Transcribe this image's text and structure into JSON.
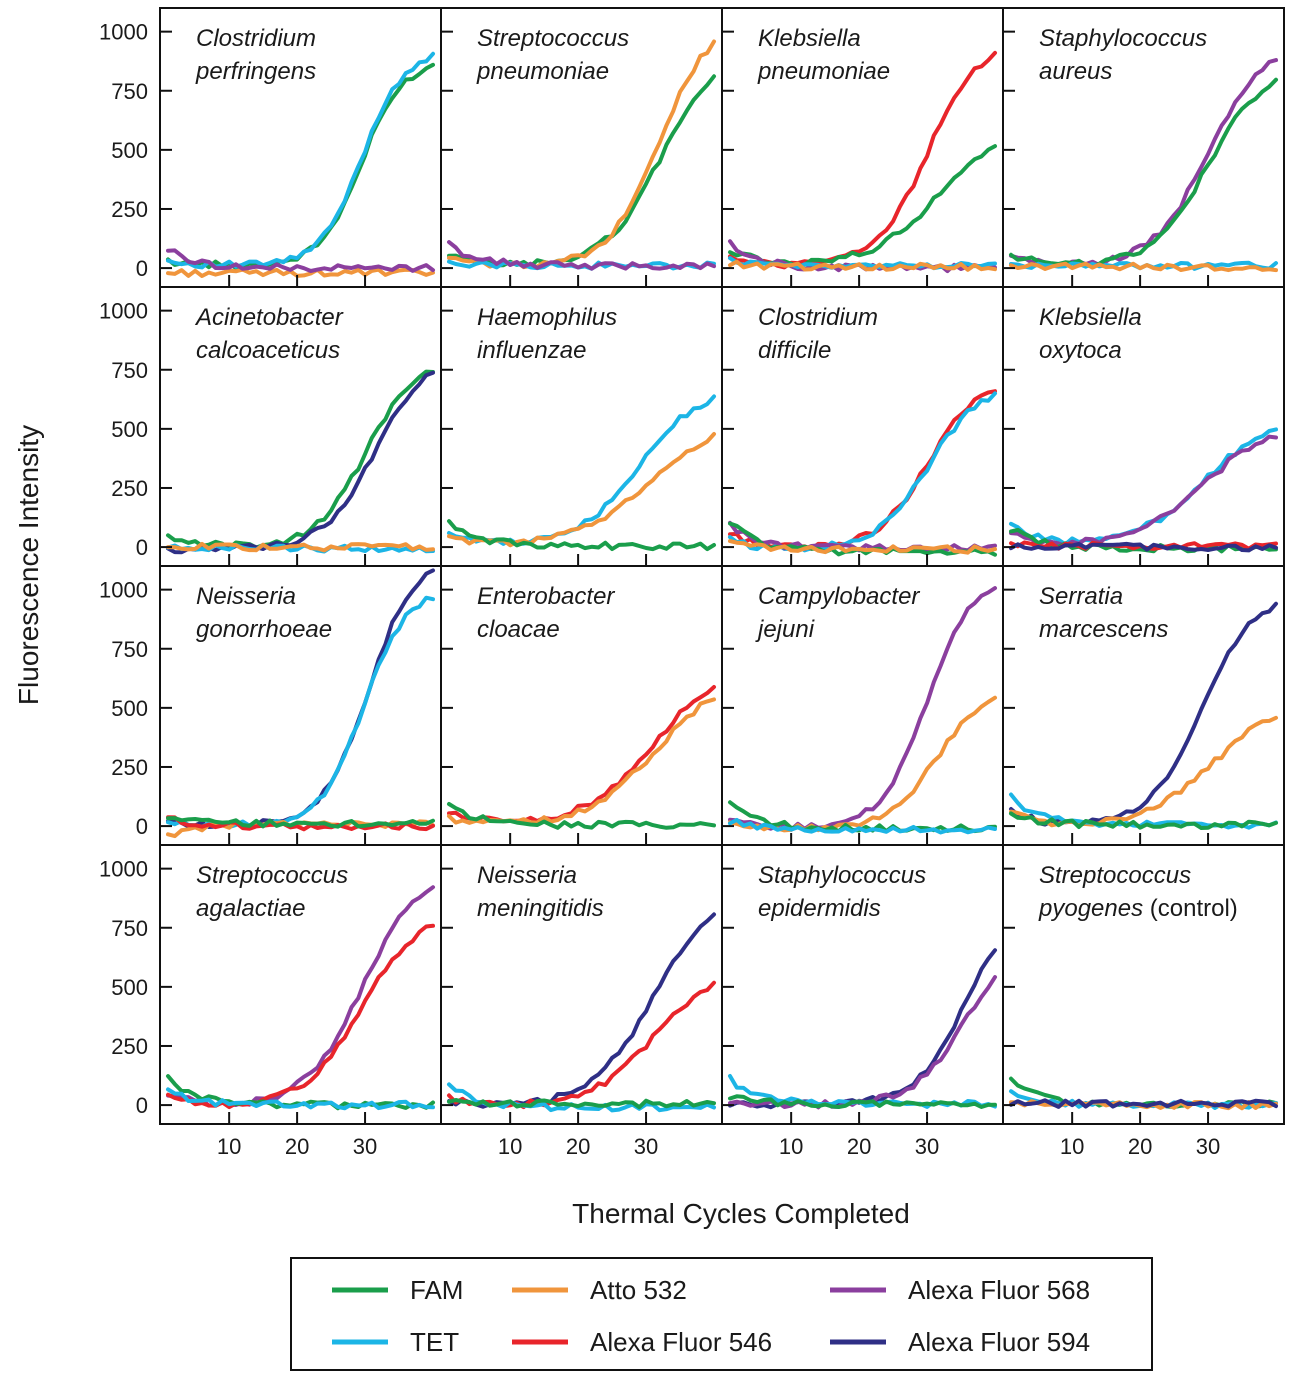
{
  "chart_data": {
    "type": "line",
    "xlabel": "Thermal Cycles Completed",
    "ylabel": "Fluorescence Intensity",
    "xlim": [
      1,
      40
    ],
    "ylim": [
      -80,
      1100
    ],
    "xticks": [
      10,
      20,
      30
    ],
    "yticks": [
      0,
      250,
      500,
      750,
      1000
    ],
    "legend_position": "bottom-center",
    "legend": [
      {
        "key": "FAM",
        "label": "FAM",
        "color": "#1a9e4b"
      },
      {
        "key": "Atto532",
        "label": "Atto 532",
        "color": "#f0953c"
      },
      {
        "key": "AF568",
        "label": "Alexa Fluor 568",
        "color": "#8b3f9e"
      },
      {
        "key": "TET",
        "label": "TET",
        "color": "#1cb5e6"
      },
      {
        "key": "AF546",
        "label": "Alexa Fluor 546",
        "color": "#e8252b"
      },
      {
        "key": "AF594",
        "label": "Alexa Fluor 594",
        "color": "#2f2f86"
      }
    ],
    "panels": [
      {
        "title_parts": [
          {
            "text": "Clostridium",
            "italic": true
          }
        ],
        "title_line2": [
          {
            "text": "perfringens",
            "italic": true
          }
        ],
        "series": [
          {
            "dye": "FAM",
            "shape": "sigmoid",
            "max": 870,
            "mid": 29.5,
            "k": 0.33,
            "base": 10,
            "start": 30
          },
          {
            "dye": "TET",
            "shape": "sigmoid",
            "max": 910,
            "mid": 29.5,
            "k": 0.33,
            "base": 10,
            "start": 30
          },
          {
            "dye": "Atto532",
            "shape": "flat",
            "base": -20,
            "start": -20
          },
          {
            "dye": "AF568",
            "shape": "flat",
            "base": 0,
            "start": 80
          }
        ]
      },
      {
        "title_parts": [
          {
            "text": "Streptococcus",
            "italic": true
          }
        ],
        "title_line2": [
          {
            "text": "pneumoniae",
            "italic": true
          }
        ],
        "series": [
          {
            "dye": "FAM",
            "shape": "sigmoid",
            "max": 900,
            "mid": 32,
            "k": 0.25,
            "base": 10,
            "start": 50
          },
          {
            "dye": "Atto532",
            "shape": "sigmoid",
            "max": 1050,
            "mid": 32,
            "k": 0.27,
            "base": 10,
            "start": 40
          },
          {
            "dye": "TET",
            "shape": "flat",
            "base": 10,
            "start": 30
          },
          {
            "dye": "AF568",
            "shape": "flat",
            "base": 10,
            "start": 100
          }
        ]
      },
      {
        "title_parts": [
          {
            "text": "Klebsiella",
            "italic": true
          }
        ],
        "title_line2": [
          {
            "text": "pneumoniae",
            "italic": true
          }
        ],
        "series": [
          {
            "dye": "AF546",
            "shape": "sigmoid",
            "max": 950,
            "mid": 30,
            "k": 0.27,
            "base": 10,
            "start": 40
          },
          {
            "dye": "FAM",
            "shape": "sigmoid",
            "max": 620,
            "mid": 32,
            "k": 0.2,
            "base": 10,
            "start": 80
          },
          {
            "dye": "AF568",
            "shape": "flat",
            "base": 0,
            "start": 110
          },
          {
            "dye": "TET",
            "shape": "flat",
            "base": 10,
            "start": 30
          },
          {
            "dye": "Atto532",
            "shape": "flat",
            "base": 5,
            "start": 20
          }
        ]
      },
      {
        "title_parts": [
          {
            "text": "Staphylococcus",
            "italic": true
          }
        ],
        "title_line2": [
          {
            "text": "aureus",
            "italic": true
          }
        ],
        "series": [
          {
            "dye": "AF568",
            "shape": "sigmoid",
            "max": 960,
            "mid": 30,
            "k": 0.24,
            "base": 5,
            "start": 50
          },
          {
            "dye": "FAM",
            "shape": "sigmoid",
            "max": 860,
            "mid": 30,
            "k": 0.24,
            "base": 5,
            "start": 60
          },
          {
            "dye": "TET",
            "shape": "flat",
            "base": 10,
            "start": 20
          },
          {
            "dye": "Atto532",
            "shape": "flat",
            "base": 5,
            "start": 10
          }
        ]
      },
      {
        "title_parts": [
          {
            "text": "Acinetobacter",
            "italic": true
          }
        ],
        "title_line2": [
          {
            "text": "calcoaceticus",
            "italic": true
          }
        ],
        "series": [
          {
            "dye": "FAM",
            "shape": "sigmoid",
            "max": 790,
            "mid": 30,
            "k": 0.28,
            "base": 0,
            "start": 40
          },
          {
            "dye": "AF594",
            "shape": "sigmoid",
            "max": 830,
            "mid": 31.5,
            "k": 0.26,
            "base": -10,
            "start": -10
          },
          {
            "dye": "TET",
            "shape": "flat",
            "base": -5,
            "start": 10
          },
          {
            "dye": "Atto532",
            "shape": "flat",
            "base": 0,
            "start": 0
          }
        ]
      },
      {
        "title_parts": [
          {
            "text": "Haemophilus",
            "italic": true
          }
        ],
        "title_line2": [
          {
            "text": "influenzae",
            "italic": true
          }
        ],
        "series": [
          {
            "dye": "TET",
            "shape": "sigmoid",
            "max": 680,
            "mid": 29,
            "k": 0.22,
            "base": 5,
            "start": 60
          },
          {
            "dye": "Atto532",
            "shape": "sigmoid",
            "max": 560,
            "mid": 31,
            "k": 0.18,
            "base": 5,
            "start": 50
          },
          {
            "dye": "FAM",
            "shape": "flat",
            "base": 5,
            "start": 110
          }
        ]
      },
      {
        "title_parts": [
          {
            "text": "Clostridium",
            "italic": true
          }
        ],
        "title_line2": [
          {
            "text": "difficile",
            "italic": true
          }
        ],
        "series": [
          {
            "dye": "AF546",
            "shape": "sigmoid",
            "max": 720,
            "mid": 30,
            "k": 0.27,
            "base": -10,
            "start": 60
          },
          {
            "dye": "TET",
            "shape": "sigmoid",
            "max": 690,
            "mid": 30,
            "k": 0.27,
            "base": -10,
            "start": 30
          },
          {
            "dye": "AF568",
            "shape": "flat",
            "base": -5,
            "start": 90
          },
          {
            "dye": "FAM",
            "shape": "flat",
            "base": -20,
            "start": 110
          },
          {
            "dye": "Atto532",
            "shape": "flat",
            "base": -10,
            "start": 20
          }
        ]
      },
      {
        "title_parts": [
          {
            "text": "Klebsiella",
            "italic": true
          }
        ],
        "title_line2": [
          {
            "text": "oxytoca",
            "italic": true
          }
        ],
        "series": [
          {
            "dye": "TET",
            "shape": "sigmoid",
            "max": 560,
            "mid": 29.5,
            "k": 0.2,
            "base": 5,
            "start": 100
          },
          {
            "dye": "AF568",
            "shape": "sigmoid",
            "max": 530,
            "mid": 29.5,
            "k": 0.2,
            "base": 5,
            "start": 60
          },
          {
            "dye": "FAM",
            "shape": "flat",
            "base": -5,
            "start": 80
          },
          {
            "dye": "AF546",
            "shape": "flat",
            "base": 5,
            "start": 10
          },
          {
            "dye": "AF594",
            "shape": "flat",
            "base": 0,
            "start": 0
          }
        ]
      },
      {
        "title_parts": [
          {
            "text": "Neisseria",
            "italic": true
          }
        ],
        "title_line2": [
          {
            "text": "gonorrhoeae",
            "italic": true
          }
        ],
        "series": [
          {
            "dye": "AF594",
            "shape": "sigmoid",
            "max": 1140,
            "mid": 30.5,
            "k": 0.3,
            "base": 5,
            "start": 20
          },
          {
            "dye": "TET",
            "shape": "sigmoid",
            "max": 1000,
            "mid": 29.8,
            "k": 0.32,
            "base": 5,
            "start": 20
          },
          {
            "dye": "Atto532",
            "shape": "flat",
            "base": 10,
            "start": -40
          },
          {
            "dye": "AF546",
            "shape": "flat",
            "base": 0,
            "start": 30
          },
          {
            "dye": "FAM",
            "shape": "flat",
            "base": 10,
            "start": 30
          }
        ]
      },
      {
        "title_parts": [
          {
            "text": "Enterobacter",
            "italic": true
          }
        ],
        "title_line2": [
          {
            "text": "cloacae",
            "italic": true
          }
        ],
        "series": [
          {
            "dye": "AF546",
            "shape": "sigmoid",
            "max": 680,
            "mid": 31,
            "k": 0.2,
            "base": 5,
            "start": 60
          },
          {
            "dye": "Atto532",
            "shape": "sigmoid",
            "max": 640,
            "mid": 31.5,
            "k": 0.2,
            "base": 5,
            "start": 30
          },
          {
            "dye": "FAM",
            "shape": "flat",
            "base": 5,
            "start": 90
          }
        ]
      },
      {
        "title_parts": [
          {
            "text": "Campylobacter",
            "italic": true
          }
        ],
        "title_line2": [
          {
            "text": "jejuni",
            "italic": true
          }
        ],
        "series": [
          {
            "dye": "AF568",
            "shape": "sigmoid",
            "max": 1080,
            "mid": 30,
            "k": 0.3,
            "base": -10,
            "start": 40
          },
          {
            "dye": "Atto532",
            "shape": "sigmoid",
            "max": 600,
            "mid": 31.5,
            "k": 0.27,
            "base": -10,
            "start": 20
          },
          {
            "dye": "FAM",
            "shape": "flat",
            "base": -10,
            "start": 90
          },
          {
            "dye": "TET",
            "shape": "flat",
            "base": -15,
            "start": 20
          }
        ]
      },
      {
        "title_parts": [
          {
            "text": "Serratia",
            "italic": true
          }
        ],
        "title_line2": [
          {
            "text": "marcescens",
            "italic": true
          }
        ],
        "series": [
          {
            "dye": "AF594",
            "shape": "sigmoid",
            "max": 1000,
            "mid": 29,
            "k": 0.25,
            "base": -5,
            "start": 70
          },
          {
            "dye": "Atto532",
            "shape": "sigmoid",
            "max": 560,
            "mid": 31,
            "k": 0.19,
            "base": -5,
            "start": 60
          },
          {
            "dye": "TET",
            "shape": "flat",
            "base": 5,
            "start": 130
          },
          {
            "dye": "FAM",
            "shape": "flat",
            "base": 5,
            "start": 50
          }
        ]
      },
      {
        "title_parts": [
          {
            "text": "Streptococcus",
            "italic": true
          }
        ],
        "title_line2": [
          {
            "text": "agalactiae",
            "italic": true
          }
        ],
        "series": [
          {
            "dye": "AF568",
            "shape": "sigmoid",
            "max": 1000,
            "mid": 29.5,
            "k": 0.24,
            "base": -5,
            "start": 50
          },
          {
            "dye": "AF546",
            "shape": "sigmoid",
            "max": 830,
            "mid": 29.5,
            "k": 0.24,
            "base": -5,
            "start": 30
          },
          {
            "dye": "FAM",
            "shape": "flat",
            "base": 0,
            "start": 120
          },
          {
            "dye": "TET",
            "shape": "flat",
            "base": 0,
            "start": 60
          }
        ]
      },
      {
        "title_parts": [
          {
            "text": "Neisseria",
            "italic": true
          }
        ],
        "title_line2": [
          {
            "text": "meningitidis",
            "italic": true
          }
        ],
        "series": [
          {
            "dye": "AF594",
            "shape": "sigmoid",
            "max": 920,
            "mid": 31,
            "k": 0.22,
            "base": -5,
            "start": 20
          },
          {
            "dye": "AF546",
            "shape": "sigmoid",
            "max": 580,
            "mid": 31,
            "k": 0.22,
            "base": -5,
            "start": 30
          },
          {
            "dye": "TET",
            "shape": "flat",
            "base": -10,
            "start": 90
          },
          {
            "dye": "FAM",
            "shape": "flat",
            "base": 5,
            "start": 20
          }
        ]
      },
      {
        "title_parts": [
          {
            "text": "Staphylococcus",
            "italic": true
          }
        ],
        "title_line2": [
          {
            "text": "epidermidis",
            "italic": true
          }
        ],
        "series": [
          {
            "dye": "AF594",
            "shape": "sigmoid",
            "max": 900,
            "mid": 36,
            "k": 0.26,
            "base": 0,
            "start": 10
          },
          {
            "dye": "AF568",
            "shape": "sigmoid",
            "max": 700,
            "mid": 35.5,
            "k": 0.26,
            "base": 0,
            "start": 20
          },
          {
            "dye": "TET",
            "shape": "flat",
            "base": 5,
            "start": 110
          },
          {
            "dye": "FAM",
            "shape": "flat",
            "base": 5,
            "start": 40
          }
        ]
      },
      {
        "title_parts": [
          {
            "text": "Streptococcus",
            "italic": true
          }
        ],
        "title_line2": [
          {
            "text": "pyogenes",
            "italic": true
          },
          {
            "text": " (control)",
            "italic": false
          }
        ],
        "series": [
          {
            "dye": "FAM",
            "shape": "flat",
            "base": 5,
            "start": 100
          },
          {
            "dye": "TET",
            "shape": "flat",
            "base": 0,
            "start": 60
          },
          {
            "dye": "Atto532",
            "shape": "flat",
            "base": 0,
            "start": 20
          },
          {
            "dye": "AF594",
            "shape": "flat",
            "base": 5,
            "start": 10
          }
        ]
      }
    ]
  }
}
